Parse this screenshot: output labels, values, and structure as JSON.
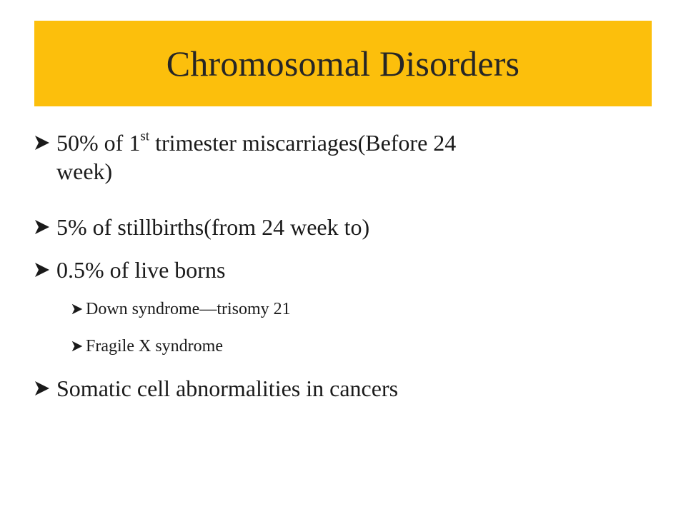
{
  "slide": {
    "title": "Chromosomal Disorders",
    "bullets": {
      "b1": {
        "prefix": "50% of 1",
        "superscript": "st",
        "suffix": " trimester miscarriages(Before 24",
        "line2": "week)"
      },
      "b2": "5% of stillbirths(from 24 week to)",
      "b3": "0.5% of live borns",
      "b3_sub1": "Down syndrome—trisomy 21",
      "b3_sub2": "Fragile X syndrome",
      "b4": "Somatic cell abnormalities in cancers"
    },
    "colors": {
      "title_bar": "#fcbf0c",
      "text": "#1a1a1a"
    },
    "bullet_icon": "arrow-bullet-icon"
  }
}
